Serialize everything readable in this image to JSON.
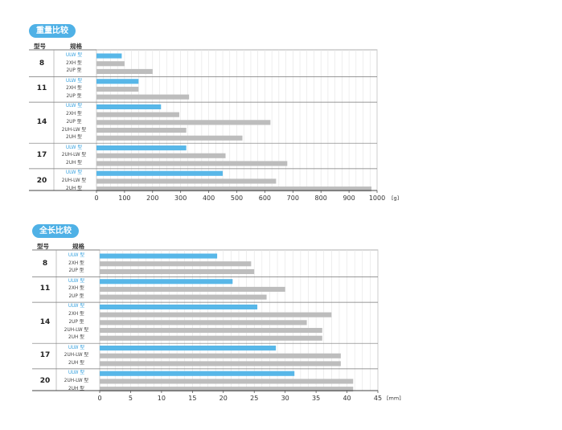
{
  "chart_data": [
    {
      "type": "bar",
      "title": "重量比较",
      "model_header": "型号",
      "spec_header": "规格",
      "unit": "[g]",
      "xlim": [
        0,
        1000
      ],
      "ticks": [
        0,
        100,
        200,
        300,
        400,
        500,
        600,
        700,
        800,
        900,
        1000
      ],
      "highlight_color": "#58b7e8",
      "bar_color": "#bdbdbd",
      "groups": [
        {
          "model": "8",
          "bars": [
            {
              "label": "ULW 型",
              "value": 90,
              "highlight": true
            },
            {
              "label": "2XH 型",
              "value": 100
            },
            {
              "label": "2UP 型",
              "value": 200
            }
          ]
        },
        {
          "model": "11",
          "bars": [
            {
              "label": "ULW 型",
              "value": 150,
              "highlight": true
            },
            {
              "label": "2XH 型",
              "value": 150
            },
            {
              "label": "2UP 型",
              "value": 330
            }
          ]
        },
        {
          "model": "14",
          "bars": [
            {
              "label": "ULW 型",
              "value": 230,
              "highlight": true
            },
            {
              "label": "2XH 型",
              "value": 295
            },
            {
              "label": "2UP 型",
              "value": 620
            },
            {
              "label": "2UH-LW 型",
              "value": 320
            },
            {
              "label": "2UH 型",
              "value": 520
            }
          ]
        },
        {
          "model": "17",
          "bars": [
            {
              "label": "ULW 型",
              "value": 320,
              "highlight": true
            },
            {
              "label": "2UH-LW 型",
              "value": 460
            },
            {
              "label": "2UH 型",
              "value": 680
            }
          ]
        },
        {
          "model": "20",
          "bars": [
            {
              "label": "ULW 型",
              "value": 450,
              "highlight": true
            },
            {
              "label": "2UH-LW 型",
              "value": 640
            },
            {
              "label": "2UH 型",
              "value": 980
            }
          ]
        }
      ]
    },
    {
      "type": "bar",
      "title": "全长比较",
      "model_header": "型号",
      "spec_header": "规格",
      "unit": "[mm]",
      "xlim": [
        0,
        45
      ],
      "ticks": [
        0,
        5,
        10,
        15,
        20,
        25,
        30,
        35,
        40,
        45
      ],
      "highlight_color": "#58b7e8",
      "bar_color": "#bdbdbd",
      "groups": [
        {
          "model": "8",
          "bars": [
            {
              "label": "ULW 型",
              "value": 19,
              "highlight": true
            },
            {
              "label": "2XH 型",
              "value": 24.5
            },
            {
              "label": "2UP 型",
              "value": 25
            }
          ]
        },
        {
          "model": "11",
          "bars": [
            {
              "label": "ULW 型",
              "value": 21.5,
              "highlight": true
            },
            {
              "label": "2XH 型",
              "value": 30
            },
            {
              "label": "2UP 型",
              "value": 27
            }
          ]
        },
        {
          "model": "14",
          "bars": [
            {
              "label": "ULW 型",
              "value": 25.5,
              "highlight": true
            },
            {
              "label": "2XH 型",
              "value": 37.5
            },
            {
              "label": "2UP 型",
              "value": 33.5
            },
            {
              "label": "2UH-LW 型",
              "value": 36
            },
            {
              "label": "2UH 型",
              "value": 36
            }
          ]
        },
        {
          "model": "17",
          "bars": [
            {
              "label": "ULW 型",
              "value": 28.5,
              "highlight": true
            },
            {
              "label": "2UH-LW 型",
              "value": 39
            },
            {
              "label": "2UH 型",
              "value": 39
            }
          ]
        },
        {
          "model": "20",
          "bars": [
            {
              "label": "ULW 型",
              "value": 31.5,
              "highlight": true
            },
            {
              "label": "2UH-LW 型",
              "value": 41
            },
            {
              "label": "2UH 型",
              "value": 41
            }
          ]
        }
      ]
    }
  ]
}
